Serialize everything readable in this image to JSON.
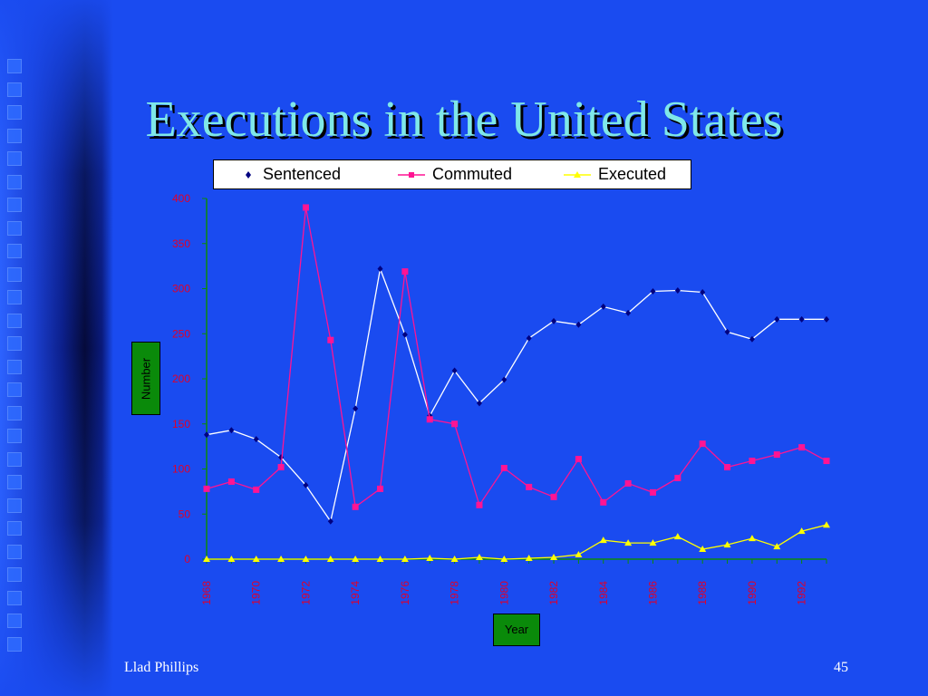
{
  "slide": {
    "title": "Executions in the United States",
    "footer_left": "Llad Phillips",
    "page_number": "45"
  },
  "colors": {
    "background": "#1a4bf0",
    "title": "#7fe8e8",
    "axis_tick_labels": "#e0002a",
    "sentenced": "#ffffff",
    "commuted": "#ff1493",
    "executed": "#ffff00",
    "axis_label_box": "#0a8a0a"
  },
  "chart_data": {
    "type": "line",
    "xlabel": "Year",
    "ylabel": "Number",
    "ylim": [
      0,
      400
    ],
    "yticks": [
      0,
      50,
      100,
      150,
      200,
      250,
      300,
      350,
      400
    ],
    "x": [
      1968,
      1969,
      1970,
      1971,
      1972,
      1973,
      1974,
      1975,
      1976,
      1977,
      1978,
      1979,
      1980,
      1981,
      1982,
      1983,
      1984,
      1985,
      1986,
      1987,
      1988,
      1989,
      1990,
      1991,
      1992,
      1993
    ],
    "xtick_labels": [
      "1968",
      "1970",
      "1972",
      "1974",
      "1976",
      "1978",
      "1980",
      "1982",
      "1984",
      "1986",
      "1988",
      "1990",
      "1992"
    ],
    "legend_position": "top",
    "grid": false,
    "series": [
      {
        "name": "Sentenced",
        "marker": "diamond",
        "values": [
          138,
          143,
          133,
          113,
          82,
          42,
          167,
          322,
          249,
          159,
          209,
          173,
          199,
          245,
          264,
          260,
          280,
          273,
          297,
          298,
          296,
          252,
          244,
          266,
          266,
          266
        ]
      },
      {
        "name": "Commuted",
        "marker": "square",
        "values": [
          78,
          86,
          77,
          102,
          390,
          243,
          58,
          78,
          319,
          155,
          150,
          60,
          101,
          80,
          69,
          111,
          63,
          84,
          74,
          90,
          128,
          102,
          109,
          116,
          124,
          109
        ]
      },
      {
        "name": "Executed",
        "marker": "triangle",
        "values": [
          0,
          0,
          0,
          0,
          0,
          0,
          0,
          0,
          0,
          1,
          0,
          2,
          0,
          1,
          2,
          5,
          21,
          18,
          18,
          25,
          11,
          16,
          23,
          14,
          31,
          38
        ]
      }
    ]
  }
}
